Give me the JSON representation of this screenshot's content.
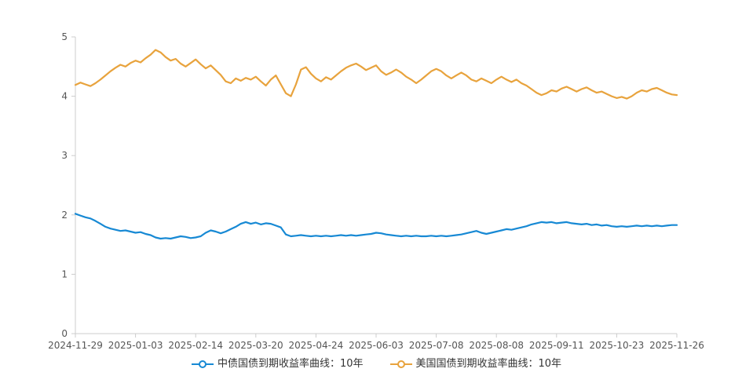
{
  "chart_data": {
    "type": "line",
    "title": "",
    "xlabel": "",
    "ylabel": "",
    "ylim": [
      0,
      5
    ],
    "y_ticks": [
      0,
      1,
      2,
      3,
      4,
      5
    ],
    "grid": false,
    "legend_position": "bottom",
    "axis_color": "#cccccc",
    "label_color": "#555555",
    "x_tick_labels": [
      "2024-11-29",
      "2025-01-03",
      "2025-02-14",
      "2025-03-20",
      "2025-04-24",
      "2025-06-03",
      "2025-07-08",
      "2025-08-08",
      "2025-09-11",
      "2025-10-23",
      "2025-11-26"
    ],
    "series": [
      {
        "name": "中债国债到期收益率曲线：10年",
        "color": "#1789d4",
        "values": [
          2.02,
          1.99,
          1.96,
          1.94,
          1.9,
          1.85,
          1.8,
          1.77,
          1.75,
          1.73,
          1.74,
          1.72,
          1.7,
          1.71,
          1.68,
          1.66,
          1.62,
          1.6,
          1.61,
          1.6,
          1.62,
          1.64,
          1.63,
          1.61,
          1.62,
          1.64,
          1.7,
          1.74,
          1.72,
          1.69,
          1.72,
          1.76,
          1.8,
          1.85,
          1.88,
          1.85,
          1.87,
          1.84,
          1.86,
          1.85,
          1.82,
          1.79,
          1.67,
          1.64,
          1.65,
          1.66,
          1.65,
          1.64,
          1.65,
          1.64,
          1.65,
          1.64,
          1.65,
          1.66,
          1.65,
          1.66,
          1.65,
          1.66,
          1.67,
          1.68,
          1.7,
          1.69,
          1.67,
          1.66,
          1.65,
          1.64,
          1.65,
          1.64,
          1.65,
          1.64,
          1.64,
          1.65,
          1.64,
          1.65,
          1.64,
          1.65,
          1.66,
          1.67,
          1.69,
          1.71,
          1.73,
          1.7,
          1.68,
          1.7,
          1.72,
          1.74,
          1.76,
          1.75,
          1.77,
          1.79,
          1.81,
          1.84,
          1.86,
          1.88,
          1.87,
          1.88,
          1.86,
          1.87,
          1.88,
          1.86,
          1.85,
          1.84,
          1.85,
          1.83,
          1.84,
          1.82,
          1.83,
          1.81,
          1.8,
          1.81,
          1.8,
          1.81,
          1.82,
          1.81,
          1.82,
          1.81,
          1.82,
          1.81,
          1.82,
          1.83,
          1.83
        ]
      },
      {
        "name": "美国国债到期收益率曲线：10年",
        "color": "#e8a33d",
        "values": [
          4.19,
          4.23,
          4.2,
          4.17,
          4.22,
          4.28,
          4.35,
          4.42,
          4.48,
          4.53,
          4.5,
          4.56,
          4.6,
          4.57,
          4.64,
          4.7,
          4.78,
          4.74,
          4.66,
          4.6,
          4.63,
          4.55,
          4.5,
          4.56,
          4.62,
          4.54,
          4.47,
          4.52,
          4.44,
          4.36,
          4.25,
          4.22,
          4.3,
          4.26,
          4.31,
          4.28,
          4.33,
          4.25,
          4.18,
          4.28,
          4.35,
          4.2,
          4.05,
          4.0,
          4.2,
          4.45,
          4.49,
          4.38,
          4.3,
          4.25,
          4.32,
          4.28,
          4.35,
          4.42,
          4.48,
          4.52,
          4.55,
          4.5,
          4.44,
          4.48,
          4.52,
          4.42,
          4.36,
          4.4,
          4.45,
          4.4,
          4.33,
          4.28,
          4.22,
          4.28,
          4.35,
          4.42,
          4.46,
          4.42,
          4.35,
          4.3,
          4.35,
          4.4,
          4.35,
          4.28,
          4.25,
          4.3,
          4.26,
          4.22,
          4.28,
          4.33,
          4.28,
          4.24,
          4.28,
          4.22,
          4.18,
          4.12,
          4.06,
          4.02,
          4.05,
          4.1,
          4.08,
          4.13,
          4.16,
          4.12,
          4.08,
          4.12,
          4.15,
          4.1,
          4.06,
          4.08,
          4.04,
          4.0,
          3.97,
          3.99,
          3.96,
          4.0,
          4.06,
          4.1,
          4.08,
          4.12,
          4.14,
          4.1,
          4.06,
          4.03,
          4.02
        ]
      }
    ]
  }
}
